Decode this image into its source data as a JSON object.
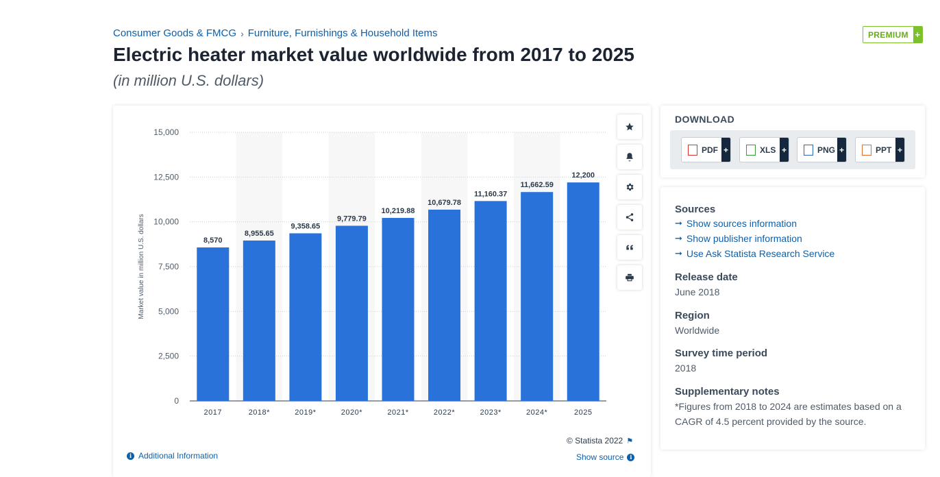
{
  "breadcrumb": {
    "item1": "Consumer Goods & FMCG",
    "separator": "›",
    "item2": "Furniture, Furnishings & Household Items"
  },
  "premium": {
    "label": "PREMIUM",
    "plus": "+"
  },
  "title": "Electric heater market value worldwide from 2017 to 2025",
  "subtitle": "(in million U.S. dollars)",
  "chart_data": {
    "type": "bar",
    "categories": [
      "2017",
      "2018*",
      "2019*",
      "2020*",
      "2021*",
      "2022*",
      "2023*",
      "2024*",
      "2025"
    ],
    "values": [
      8570,
      8955.65,
      9358.65,
      9779.79,
      10219.88,
      10679.78,
      11160.37,
      11662.59,
      12200
    ],
    "value_labels": [
      "8,570",
      "8,955.65",
      "9,358.65",
      "9,779.79",
      "10,219.88",
      "10,679.78",
      "11,160.37",
      "11,662.59",
      "12,200"
    ],
    "ylabel": "Market value in million U.S. dollars",
    "xlabel": "",
    "ylim": [
      0,
      15000
    ],
    "yticks": [
      0,
      2500,
      5000,
      7500,
      10000,
      12500,
      15000
    ],
    "ytick_labels": [
      "0",
      "2,500",
      "5,000",
      "7,500",
      "10,000",
      "12,500",
      "15,000"
    ],
    "bar_color": "#2872d9",
    "grid": true
  },
  "tools": [
    "star-icon",
    "bell-icon",
    "gear-icon",
    "share-icon",
    "quote-icon",
    "print-icon"
  ],
  "footer": {
    "copyright": "© Statista 2022",
    "show_source": "Show source",
    "additional_info": "Additional Information"
  },
  "download": {
    "heading": "DOWNLOAD",
    "buttons": [
      {
        "label": "PDF",
        "color": "#d9342b"
      },
      {
        "label": "XLS",
        "color": "#3c9a3a"
      },
      {
        "label": "PNG",
        "color": "#2b66b8"
      },
      {
        "label": "PPT",
        "color": "#e0712b"
      }
    ],
    "plus": "+"
  },
  "sources": {
    "heading": "Sources",
    "links": [
      "Show sources information",
      "Show publisher information",
      "Use Ask Statista Research Service"
    ],
    "release_date_label": "Release date",
    "release_date": "June 2018",
    "region_label": "Region",
    "region": "Worldwide",
    "survey_label": "Survey time period",
    "survey": "2018",
    "notes_label": "Supplementary notes",
    "notes": "*Figures from 2018 to 2024 are estimates based on a CAGR of 4.5 percent provided by the source."
  }
}
